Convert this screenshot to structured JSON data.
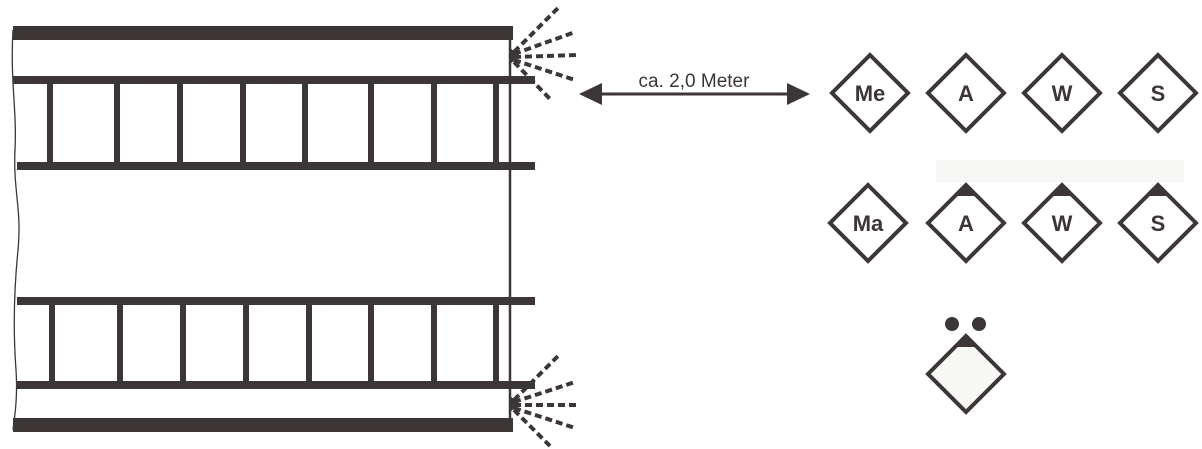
{
  "colors": {
    "ink": "#3d3636",
    "paper": "#ffffff",
    "fill_light": "#f7f7f5"
  },
  "dimension": {
    "label": "ca. 2,0 Meter"
  },
  "symbols": {
    "row1": [
      {
        "label": "Me"
      },
      {
        "label": "A"
      },
      {
        "label": "W"
      },
      {
        "label": "S"
      }
    ],
    "row2": [
      {
        "label": "Ma"
      },
      {
        "label": "A"
      },
      {
        "label": "W"
      },
      {
        "label": "S"
      }
    ],
    "single": {
      "label": ""
    }
  }
}
